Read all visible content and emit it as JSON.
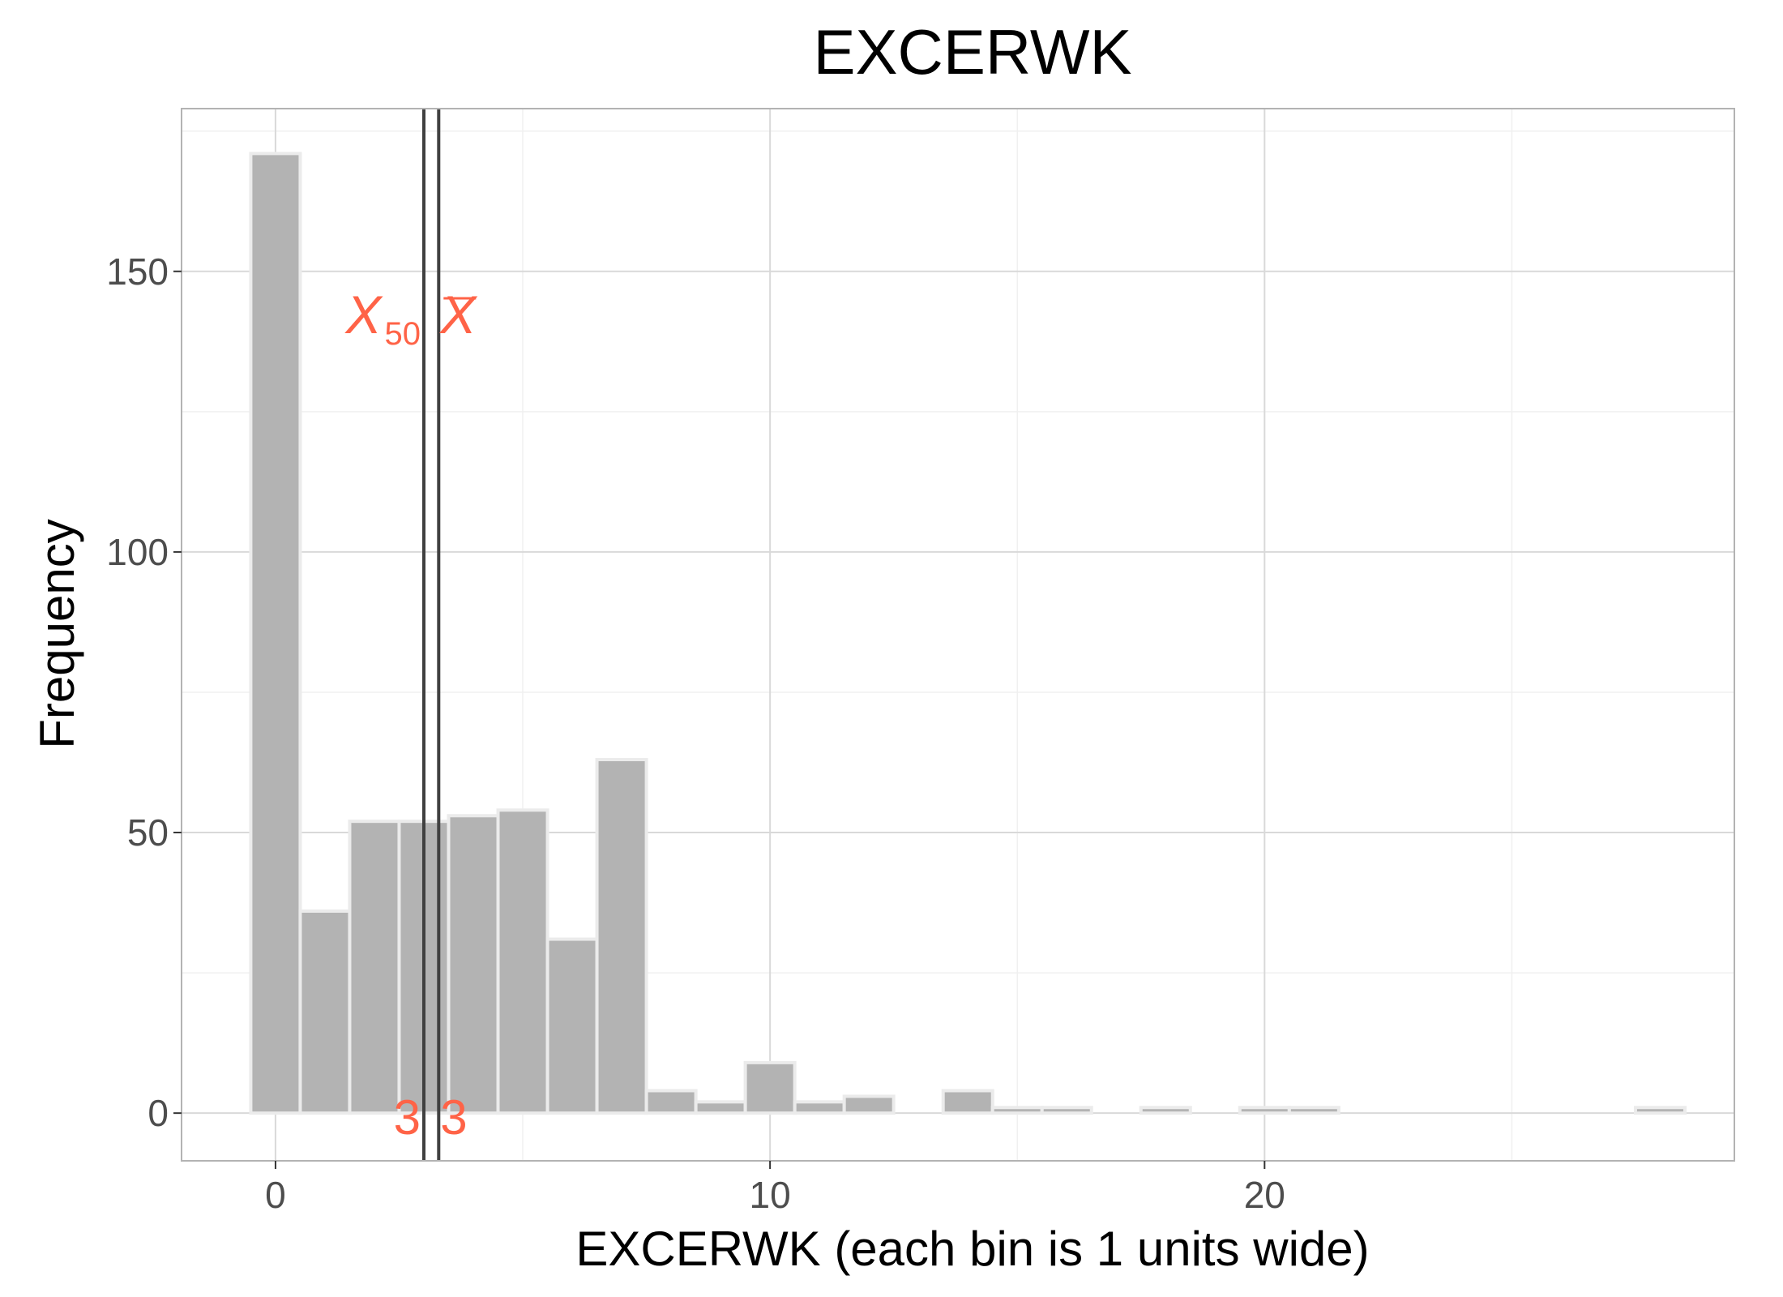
{
  "chart_data": {
    "type": "bar",
    "title": "EXCERWK",
    "xlabel": "EXCERWK (each bin is 1 units wide)",
    "ylabel": "Frequency",
    "bin_width": 1,
    "xlim": [
      -1.9,
      29.5
    ],
    "ylim": [
      -8.5,
      179
    ],
    "x_ticks": [
      0,
      10,
      20
    ],
    "y_ticks": [
      0,
      50,
      100,
      150
    ],
    "grid": true,
    "bins": [
      {
        "x": 0,
        "count": 171
      },
      {
        "x": 1,
        "count": 36
      },
      {
        "x": 2,
        "count": 52
      },
      {
        "x": 3,
        "count": 52
      },
      {
        "x": 4,
        "count": 53
      },
      {
        "x": 5,
        "count": 54
      },
      {
        "x": 6,
        "count": 31
      },
      {
        "x": 7,
        "count": 63
      },
      {
        "x": 8,
        "count": 4
      },
      {
        "x": 9,
        "count": 2
      },
      {
        "x": 10,
        "count": 9
      },
      {
        "x": 11,
        "count": 2
      },
      {
        "x": 12,
        "count": 3
      },
      {
        "x": 13,
        "count": 0
      },
      {
        "x": 14,
        "count": 4
      },
      {
        "x": 15,
        "count": 1
      },
      {
        "x": 16,
        "count": 1
      },
      {
        "x": 17,
        "count": 0
      },
      {
        "x": 18,
        "count": 1
      },
      {
        "x": 19,
        "count": 0
      },
      {
        "x": 20,
        "count": 1
      },
      {
        "x": 21,
        "count": 1
      },
      {
        "x": 22,
        "count": 0
      },
      {
        "x": 23,
        "count": 0
      },
      {
        "x": 24,
        "count": 0
      },
      {
        "x": 25,
        "count": 0
      },
      {
        "x": 26,
        "count": 0
      },
      {
        "x": 27,
        "count": 0
      },
      {
        "x": 28,
        "count": 1
      }
    ],
    "reference_lines": [
      {
        "name": "median",
        "x": 3,
        "symbol": "X",
        "subscript": "50",
        "value_label": "3"
      },
      {
        "name": "mean",
        "x": 3.3,
        "symbol": "X",
        "overline": true,
        "value_label": "3"
      }
    ],
    "colors": {
      "bar_fill": "#b3b3b3",
      "bar_outline": "#ebebeb",
      "reference_line": "#404040",
      "annotation": "#ff6347",
      "grid_major": "#d9d9d9",
      "grid_minor": "#f0f0f0",
      "panel_border": "#b3b3b3"
    }
  }
}
